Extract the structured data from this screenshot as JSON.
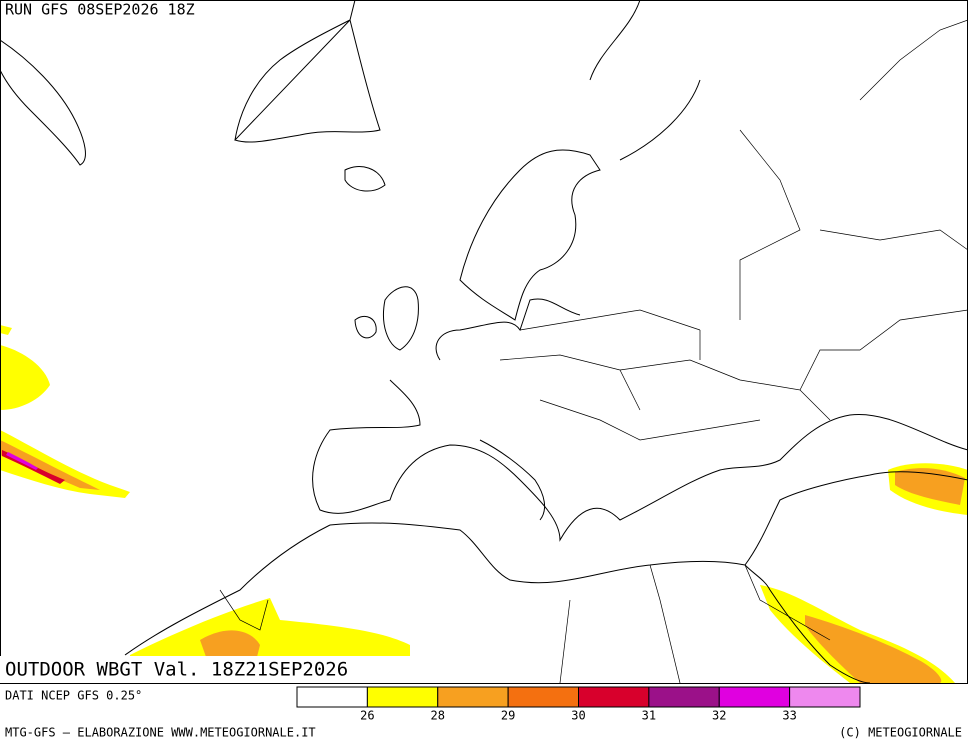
{
  "header": {
    "run": "RUN GFS 08SEP2026 18Z"
  },
  "title": "OUTDOOR WBGT Val. 18Z21SEP2026",
  "source": "DATI NCEP GFS 0.25°",
  "colorbar": {
    "colors": [
      "#ffffff",
      "#ffff00",
      "#f7a020",
      "#f47010",
      "#d8002c",
      "#9b1189",
      "#e000e0",
      "#ee88ee"
    ],
    "ticks": [
      26,
      28,
      29,
      30,
      31,
      32,
      33
    ]
  },
  "footer": {
    "left": "MTG-GFS — ELABORAZIONE WWW.METEOGIORNALE.IT",
    "right": "(C) METEOGIORNALE"
  }
}
